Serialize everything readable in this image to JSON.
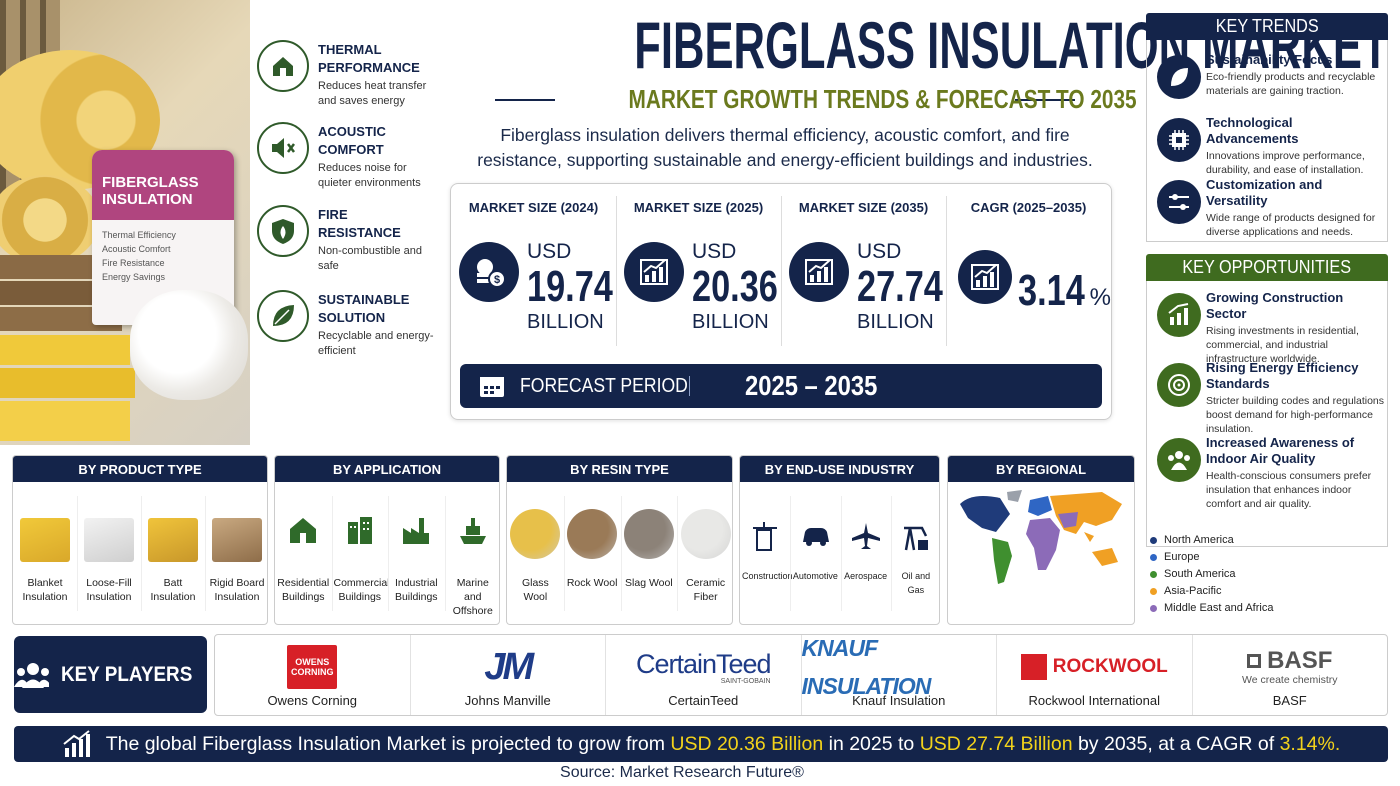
{
  "header": {
    "title": "FIBERGLASS INSULATION MARKET",
    "subtitle": "MARKET GROWTH TRENDS & FORECAST TO 2035",
    "description": "Fiberglass insulation delivers thermal efficiency, acoustic comfort, and fire resistance, supporting sustainable and energy-efficient buildings and industries."
  },
  "product_image": {
    "bag_title": "FIBERGLASS INSULATION",
    "bag_items": [
      "Thermal Efficiency",
      "Acoustic Comfort",
      "Fire Resistance",
      "Energy Savings"
    ]
  },
  "features": [
    {
      "title": "THERMAL PERFORMANCE",
      "description": "Reduces heat transfer and saves energy"
    },
    {
      "title": "ACOUSTIC COMFORT",
      "description": "Reduces noise for quieter environments"
    },
    {
      "title": "FIRE RESISTANCE",
      "description": "Non-combustible and safe"
    },
    {
      "title": "SUSTAINABLE SOLUTION",
      "description": "Recyclable and energy-efficient"
    }
  ],
  "stats": [
    {
      "label": "MARKET SIZE (2024)",
      "currency": "USD",
      "value": 19.74,
      "unit": "BILLION"
    },
    {
      "label": "MARKET SIZE (2025)",
      "currency": "USD",
      "value": 20.36,
      "unit": "BILLION"
    },
    {
      "label": "MARKET SIZE (2035)",
      "currency": "USD",
      "value": 27.74,
      "unit": "BILLION"
    },
    {
      "label": "CAGR (2025–2035)",
      "value": 3.14,
      "unit": "%"
    }
  ],
  "forecast": {
    "label": "FORECAST PERIOD",
    "value": "2025 – 2035"
  },
  "key_trends": {
    "title": "KEY TRENDS",
    "items": [
      {
        "title": "Sustainability Focus",
        "description": "Eco-friendly products and recyclable materials are gaining traction."
      },
      {
        "title": "Technological Advancements",
        "description": "Innovations improve performance, durability, and ease of installation."
      },
      {
        "title": "Customization and Versatility",
        "description": "Wide range of products designed for diverse applications and needs."
      }
    ]
  },
  "key_opportunities": {
    "title": "KEY OPPORTUNITIES",
    "items": [
      {
        "title": "Growing Construction Sector",
        "description": "Rising investments in residential, commercial, and industrial infrastructure worldwide."
      },
      {
        "title": "Rising Energy Efficiency Standards",
        "description": "Stricter building codes and regulations boost demand for high-performance insulation."
      },
      {
        "title": "Increased Awareness of Indoor Air Quality",
        "description": "Health-conscious consumers prefer insulation that enhances indoor comfort and air quality."
      }
    ]
  },
  "segments": [
    {
      "title": "BY PRODUCT TYPE",
      "items": [
        "Blanket Insulation",
        "Loose-Fill Insulation",
        "Batt Insulation",
        "Rigid Board Insulation"
      ]
    },
    {
      "title": "BY APPLICATION",
      "items": [
        "Residential Buildings",
        "Commercial Buildings",
        "Industrial Buildings",
        "Marine and Offshore"
      ]
    },
    {
      "title": "BY RESIN TYPE",
      "items": [
        "Glass Wool",
        "Rock Wool",
        "Slag Wool",
        "Ceramic Fiber"
      ]
    },
    {
      "title": "BY END-USE INDUSTRY",
      "items": [
        "Construction",
        "Automotive",
        "Aerospace",
        "Oil and Gas"
      ]
    },
    {
      "title": "BY REGIONAL",
      "legend": [
        {
          "name": "North America",
          "color": "#1f3b7a"
        },
        {
          "name": "Europe",
          "color": "#2f66c4"
        },
        {
          "name": "South America",
          "color": "#3f8f2f"
        },
        {
          "name": "Asia-Pacific",
          "color": "#f0a024"
        },
        {
          "name": "Middle East and Africa",
          "color": "#8c6bb8"
        }
      ]
    }
  ],
  "key_players": {
    "title": "KEY PLAYERS",
    "players": [
      {
        "logo": "OWENS CORNING",
        "name": "Owens Corning"
      },
      {
        "logo": "JM",
        "name": "Johns Manville"
      },
      {
        "logo": "CertainTeed",
        "logo_sub": "SAINT-GOBAIN",
        "name": "CertainTeed"
      },
      {
        "logo": "KNAUF INSULATION",
        "name": "Knauf Insulation"
      },
      {
        "logo": "ROCKWOOL",
        "name": "Rockwool International"
      },
      {
        "logo": "BASF",
        "logo_sub": "We create chemistry",
        "name": "BASF"
      }
    ]
  },
  "footer": {
    "banner": [
      "The global Fiberglass Insulation Market is projected to grow from ",
      "USD 20.36 Billion",
      " in 2025 to ",
      "USD 27.74 Billion",
      " by 2035, at a CAGR of ",
      "3.14%."
    ],
    "source": "Source: Market Research Future®"
  }
}
